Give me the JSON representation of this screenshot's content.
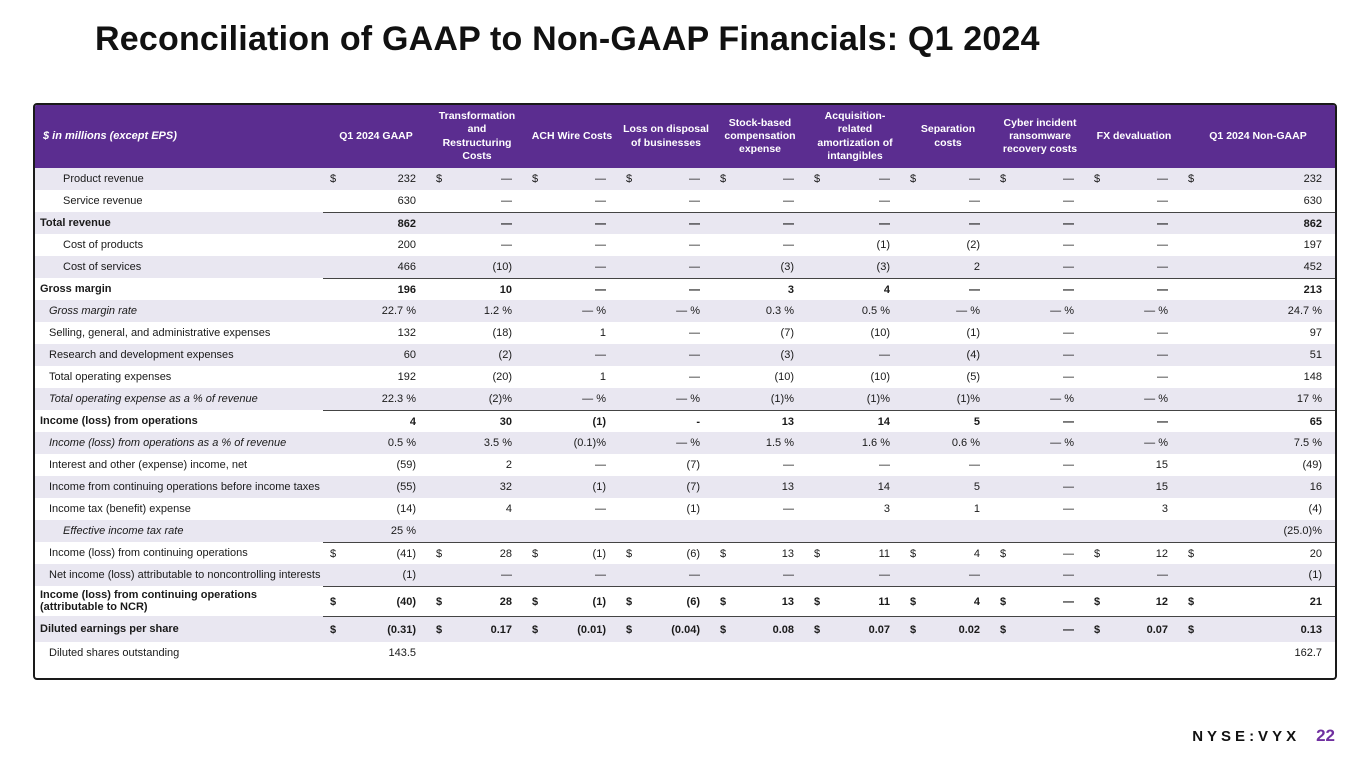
{
  "title": "Reconciliation of GAAP to Non-GAAP Financials: Q1 2024",
  "footer": {
    "ticker": "NYSE:VYX",
    "page_number": "22"
  },
  "colors": {
    "header_bg": "#5b2d90",
    "stripe_row": "#e9e7f1",
    "table_border": "#1a1a1a",
    "page_number_accent": "#7030a0"
  },
  "table": {
    "unit_label": "$ in millions (except EPS)",
    "columns": [
      "Q1 2024 GAAP",
      "Transformation and Restructuring Costs",
      "ACH Wire Costs",
      "Loss on disposal of businesses",
      "Stock-based compensation expense",
      "Acquisition-related amortization of intangibles",
      "Separation costs",
      "Cyber incident ransomware recovery costs",
      "FX devaluation",
      "Q1 2024 Non-GAAP"
    ],
    "rows": [
      {
        "label": "Product revenue",
        "indent": 2,
        "bold": false,
        "italic": false,
        "dollar": true,
        "topline": false,
        "tall": false,
        "values": [
          "232",
          "—",
          "—",
          "—",
          "—",
          "—",
          "—",
          "—",
          "—",
          "232"
        ]
      },
      {
        "label": "Service revenue",
        "indent": 2,
        "bold": false,
        "italic": false,
        "dollar": false,
        "topline": false,
        "tall": false,
        "values": [
          "630",
          "—",
          "—",
          "—",
          "—",
          "—",
          "—",
          "—",
          "—",
          "630"
        ]
      },
      {
        "label": "Total revenue",
        "indent": 0,
        "bold": true,
        "italic": false,
        "dollar": false,
        "topline": true,
        "tall": false,
        "values": [
          "862",
          "—",
          "—",
          "—",
          "—",
          "—",
          "—",
          "—",
          "—",
          "862"
        ]
      },
      {
        "label": "Cost of products",
        "indent": 2,
        "bold": false,
        "italic": false,
        "dollar": false,
        "topline": false,
        "tall": false,
        "values": [
          "200",
          "—",
          "—",
          "—",
          "—",
          "(1)",
          "(2)",
          "—",
          "—",
          "197"
        ]
      },
      {
        "label": "Cost of services",
        "indent": 2,
        "bold": false,
        "italic": false,
        "dollar": false,
        "topline": false,
        "tall": false,
        "values": [
          "466",
          "(10)",
          "—",
          "—",
          "(3)",
          "(3)",
          "2",
          "—",
          "—",
          "452"
        ]
      },
      {
        "label": "Gross margin",
        "indent": 0,
        "bold": true,
        "italic": false,
        "dollar": false,
        "topline": true,
        "tall": false,
        "values": [
          "196",
          "10",
          "—",
          "—",
          "3",
          "4",
          "—",
          "—",
          "—",
          "213"
        ]
      },
      {
        "label": "Gross margin rate",
        "indent": 1,
        "bold": false,
        "italic": true,
        "dollar": false,
        "topline": false,
        "tall": false,
        "values": [
          "22.7 %",
          "1.2 %",
          "— %",
          "— %",
          "0.3 %",
          "0.5 %",
          "— %",
          "— %",
          "— %",
          "24.7 %"
        ]
      },
      {
        "label": "Selling, general, and administrative expenses",
        "indent": 1,
        "bold": false,
        "italic": false,
        "dollar": false,
        "topline": false,
        "tall": false,
        "values": [
          "132",
          "(18)",
          "1",
          "—",
          "(7)",
          "(10)",
          "(1)",
          "—",
          "—",
          "97"
        ]
      },
      {
        "label": "Research and development expenses",
        "indent": 1,
        "bold": false,
        "italic": false,
        "dollar": false,
        "topline": false,
        "tall": false,
        "values": [
          "60",
          "(2)",
          "—",
          "—",
          "(3)",
          "—",
          "(4)",
          "—",
          "—",
          "51"
        ]
      },
      {
        "label": "Total operating expenses",
        "indent": 1,
        "bold": false,
        "italic": false,
        "dollar": false,
        "topline": false,
        "tall": false,
        "values": [
          "192",
          "(20)",
          "1",
          "—",
          "(10)",
          "(10)",
          "(5)",
          "—",
          "—",
          "148"
        ]
      },
      {
        "label": "Total operating expense as a % of revenue",
        "indent": 1,
        "bold": false,
        "italic": true,
        "dollar": false,
        "topline": false,
        "tall": false,
        "values": [
          "22.3 %",
          "(2)%",
          "— %",
          "— %",
          "(1)%",
          "(1)%",
          "(1)%",
          "— %",
          "— %",
          "17 %"
        ]
      },
      {
        "label": "Income (loss) from operations",
        "indent": 0,
        "bold": true,
        "italic": false,
        "dollar": false,
        "topline": true,
        "tall": false,
        "values": [
          "4",
          "30",
          "(1)",
          "-",
          "13",
          "14",
          "5",
          "—",
          "—",
          "65"
        ]
      },
      {
        "label": "Income (loss) from operations as a % of revenue",
        "indent": 1,
        "bold": false,
        "italic": true,
        "dollar": false,
        "topline": false,
        "tall": false,
        "values": [
          "0.5 %",
          "3.5 %",
          "(0.1)%",
          "— %",
          "1.5 %",
          "1.6 %",
          "0.6 %",
          "— %",
          "— %",
          "7.5 %"
        ]
      },
      {
        "label": "Interest and other (expense) income, net",
        "indent": 1,
        "bold": false,
        "italic": false,
        "dollar": false,
        "topline": false,
        "tall": false,
        "values": [
          "(59)",
          "2",
          "—",
          "(7)",
          "—",
          "—",
          "—",
          "—",
          "15",
          "(49)"
        ]
      },
      {
        "label": "Income from continuing operations before income taxes",
        "indent": 1,
        "bold": false,
        "italic": false,
        "dollar": false,
        "topline": false,
        "tall": false,
        "values": [
          "(55)",
          "32",
          "(1)",
          "(7)",
          "13",
          "14",
          "5",
          "—",
          "15",
          "16"
        ]
      },
      {
        "label": "Income tax (benefit) expense",
        "indent": 1,
        "bold": false,
        "italic": false,
        "dollar": false,
        "topline": false,
        "tall": false,
        "values": [
          "(14)",
          "4",
          "—",
          "(1)",
          "—",
          "3",
          "1",
          "—",
          "3",
          "(4)"
        ]
      },
      {
        "label": "Effective income tax rate",
        "indent": 2,
        "bold": false,
        "italic": true,
        "dollar": false,
        "topline": false,
        "tall": false,
        "values": [
          "25 %",
          "",
          "",
          "",
          "",
          "",
          "",
          "",
          "",
          "(25.0)%"
        ]
      },
      {
        "label": "Income (loss) from continuing operations",
        "indent": 1,
        "bold": false,
        "italic": false,
        "dollar": true,
        "topline": true,
        "tall": false,
        "values": [
          "(41)",
          "28",
          "(1)",
          "(6)",
          "13",
          "11",
          "4",
          "—",
          "12",
          "20"
        ]
      },
      {
        "label": "Net income (loss) attributable to noncontrolling interests",
        "indent": 1,
        "bold": false,
        "italic": false,
        "dollar": false,
        "topline": false,
        "tall": false,
        "values": [
          "(1)",
          "—",
          "—",
          "—",
          "—",
          "—",
          "—",
          "—",
          "—",
          "(1)"
        ]
      },
      {
        "label": "Income (loss) from continuing operations (attributable to NCR)",
        "indent": 0,
        "bold": true,
        "italic": false,
        "dollar": true,
        "topline": true,
        "tall": true,
        "values": [
          "(40)",
          "28",
          "(1)",
          "(6)",
          "13",
          "11",
          "4",
          "—",
          "12",
          "21"
        ]
      },
      {
        "label": "Diluted earnings per share",
        "indent": 0,
        "bold": true,
        "italic": false,
        "dollar": true,
        "topline": true,
        "tall": false,
        "values": [
          "(0.31)",
          "0.17",
          "(0.01)",
          "(0.04)",
          "0.08",
          "0.07",
          "0.02",
          "—",
          "0.07",
          "0.13"
        ]
      },
      {
        "label": "Diluted shares outstanding",
        "indent": 1,
        "bold": false,
        "italic": false,
        "dollar": false,
        "topline": false,
        "tall": false,
        "values": [
          "143.5",
          "",
          "",
          "",
          "",
          "",
          "",
          "",
          "",
          "162.7"
        ]
      }
    ]
  }
}
